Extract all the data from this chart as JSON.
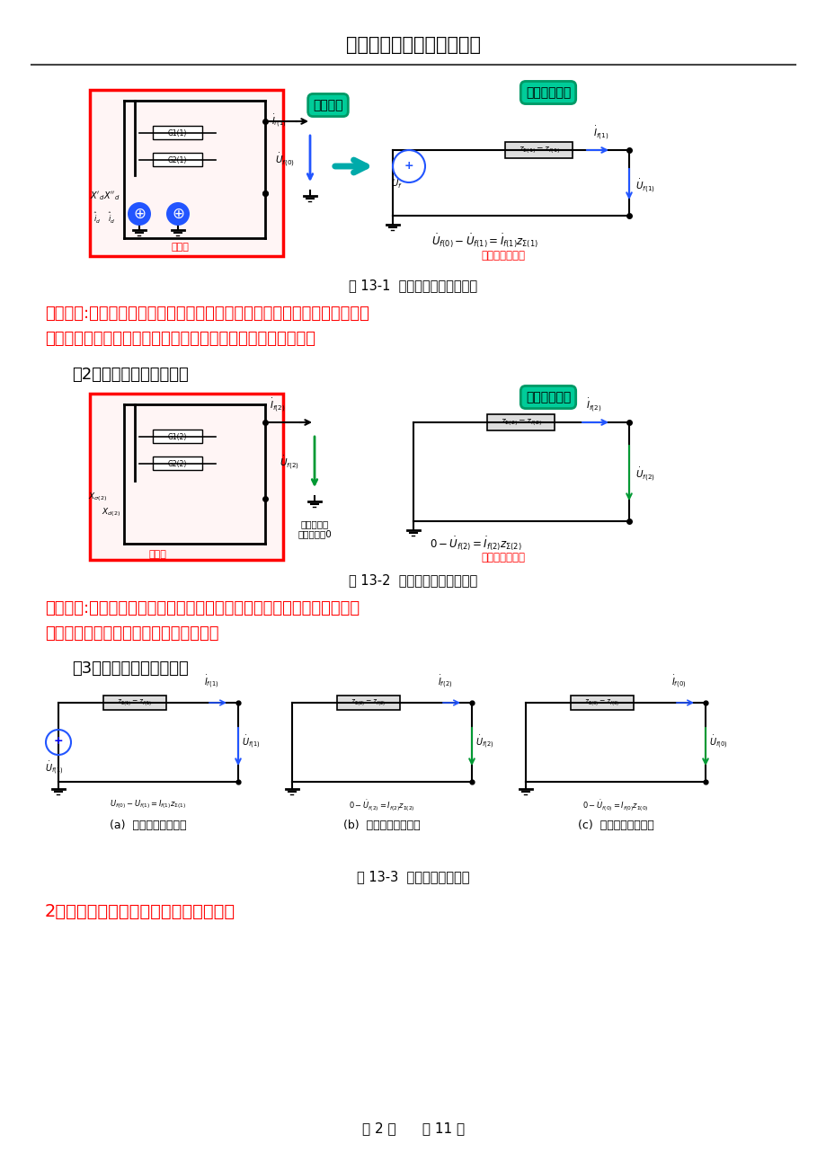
{
  "title": "大连理工大学网络教育学院",
  "page_info": "第 2 页      共 11 页",
  "bg_color": "#ffffff",
  "fig1_caption": "图 13-1  正序网络等值电路形成",
  "fig2_caption": "图 13-2  负序网络等值电路形成",
  "fig3_caption": "图 13-3  三序网络等值电路",
  "text1_part1": "形成原理:根据戴维南定理，可把短路点以内的系统（上图红框以内的部分）",
  "text1_part2": "看作是一个以空载电压为电动势、输入阻抗为内阻抗的电压源。",
  "text2_heading": "（2）负序网络的等值电路",
  "text2_part1": "形成原理:根据戴维南定理，可把短路点以内的系统看作是一个以空载电压",
  "text2_part2": "为电动势、输入阻抗为内阻抗的电压源。",
  "text3_heading": "（3）零序网络的等值电路",
  "text4_heading": "2、不对称短路的序参数表示的边界条件",
  "fig3a_label": "(a)  正序网络等值电路",
  "fig3b_label": "(b)  负序网络等值电路",
  "fig3c_label": "(c)  零序网络等值电路",
  "label_zhengxu": "正序网",
  "label_fuxu": "负序网",
  "label_zhengxu_eq": "正序网等值电路",
  "label_fuxu_eq": "负序网等值电路",
  "label_kongzai": "负序网络的\n空载电压为0",
  "bubble1": "开路电压",
  "bubble2": "正序输入阻抗",
  "bubble3": "负序输入阻抗"
}
